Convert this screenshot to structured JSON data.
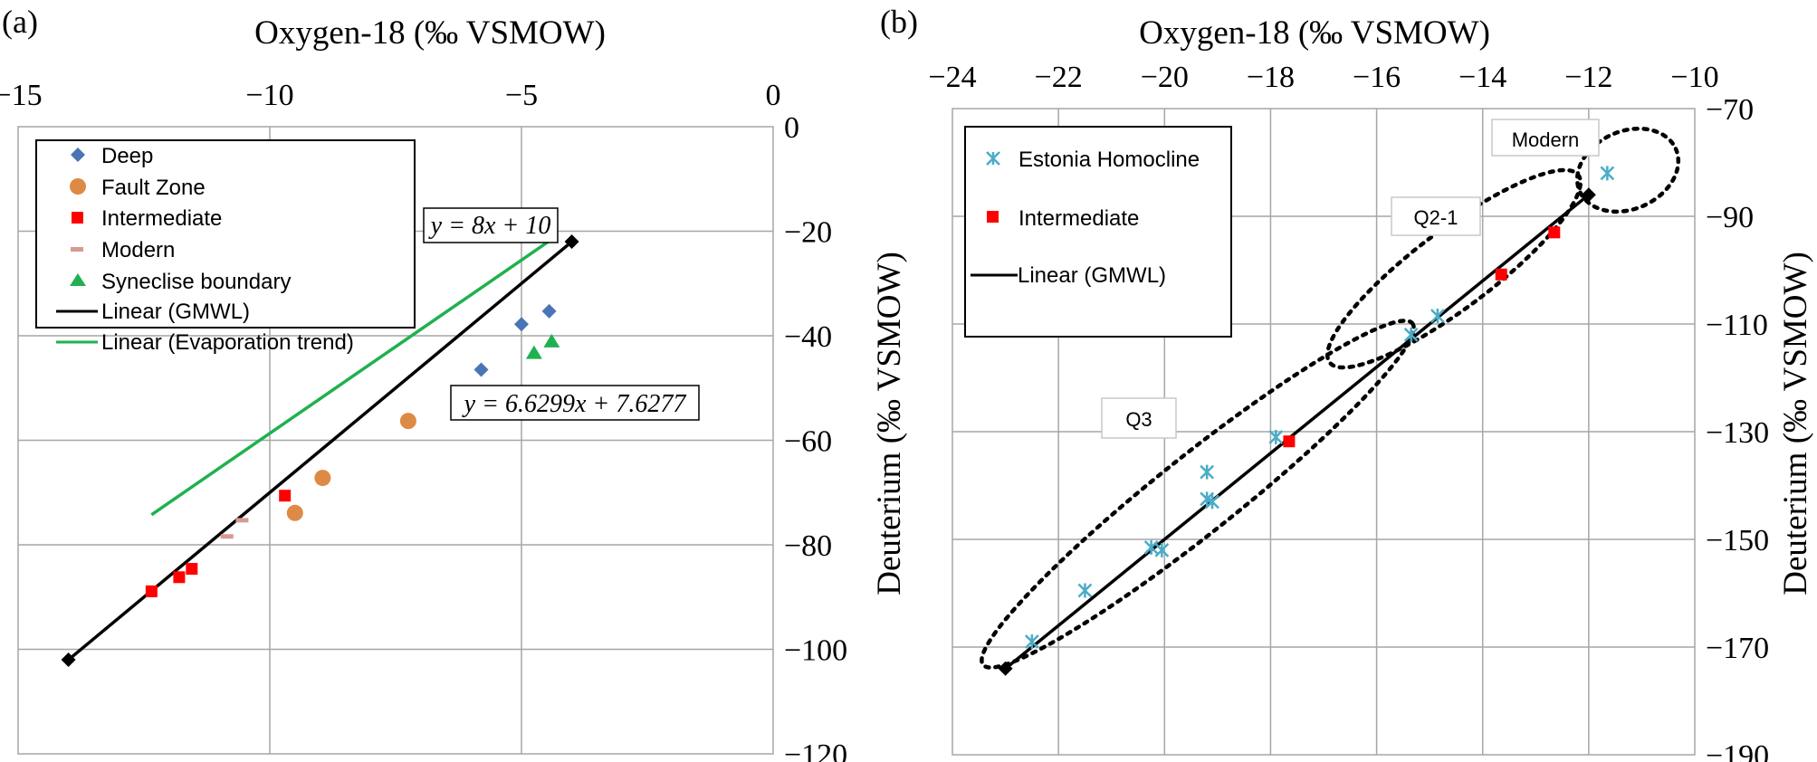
{
  "chart_data": [
    {
      "panel_label": "(a)",
      "type": "scatter",
      "xlabel": "Oxygen-18 (‰ VSMOW)",
      "ylabel": "Deuterium (‰ VSMOW)",
      "xlim": [
        -15,
        0
      ],
      "ylim": [
        -120,
        0
      ],
      "x_ticks": [
        -15,
        -10,
        -5,
        0
      ],
      "y_ticks": [
        0,
        -20,
        -40,
        -60,
        -80,
        -100,
        -120
      ],
      "x_axis_position": "top",
      "y_axis_position": "right",
      "grid": true,
      "legend_position": "top-left",
      "series": [
        {
          "name": "Deep",
          "marker": "diamond",
          "color": "#4a74b5",
          "points": [
            [
              -5.0,
              -37.8
            ],
            [
              -4.45,
              -35.3
            ],
            [
              -5.8,
              -46.5
            ]
          ]
        },
        {
          "name": "Fault Zone",
          "marker": "circle",
          "color": "#dd8a46",
          "points": [
            [
              -7.25,
              -56.3
            ],
            [
              -8.95,
              -67.2
            ],
            [
              -9.5,
              -73.9
            ]
          ]
        },
        {
          "name": "Intermediate",
          "marker": "square",
          "color": "#ff0000",
          "points": [
            [
              -9.7,
              -70.6
            ],
            [
              -11.55,
              -84.6
            ],
            [
              -11.8,
              -86.2
            ],
            [
              -12.35,
              -88.9
            ]
          ]
        },
        {
          "name": "Modern",
          "marker": "dash",
          "color": "#d69a93",
          "points": [
            [
              -10.55,
              -75.3
            ],
            [
              -10.85,
              -78.4
            ]
          ]
        },
        {
          "name": "Syneclise boundary",
          "marker": "triangle",
          "color": "#1fb14f",
          "points": [
            [
              -4.4,
              -41.2
            ],
            [
              -4.75,
              -43.4
            ]
          ]
        },
        {
          "name": "Linear (GMWL)",
          "type": "line",
          "color": "#000000",
          "points": [
            [
              -14,
              -102
            ],
            [
              -4,
              -22
            ]
          ],
          "end_marker": "diamond"
        },
        {
          "name": "Linear (Evaporation trend)",
          "type": "line",
          "color": "#1fb14f",
          "points": [
            [
              -12.35,
              -74.25
            ],
            [
              -4.4,
              -21.54
            ]
          ]
        }
      ],
      "annotations": [
        {
          "text": "y = 8x + 10",
          "x": -7.8,
          "y": -20
        },
        {
          "text": "y = 6.6299x + 7.6277",
          "x": -6.6,
          "y": -53
        }
      ]
    },
    {
      "panel_label": "(b)",
      "type": "scatter",
      "xlabel": "Oxygen-18 (‰ VSMOW)",
      "ylabel": "Deuterium (‰ VSMOW)",
      "xlim": [
        -24,
        -10
      ],
      "ylim": [
        -190,
        -70
      ],
      "x_ticks": [
        -24,
        -22,
        -20,
        -18,
        -16,
        -14,
        -12,
        -10
      ],
      "y_ticks": [
        -70,
        -90,
        -110,
        -130,
        -150,
        -170,
        -190
      ],
      "x_axis_position": "top",
      "y_axis_position": "right",
      "grid": true,
      "legend_position": "top-left",
      "series": [
        {
          "name": "Estonia Homocline",
          "marker": "asterisk",
          "color": "#4aacc6",
          "points": [
            [
              -22.5,
              -169
            ],
            [
              -21.5,
              -159.5
            ],
            [
              -20.25,
              -151.5
            ],
            [
              -20.05,
              -152
            ],
            [
              -19.2,
              -142.5
            ],
            [
              -19.1,
              -143
            ],
            [
              -19.2,
              -137.5
            ],
            [
              -17.9,
              -131
            ],
            [
              -15.35,
              -112
            ],
            [
              -14.85,
              -108.5
            ],
            [
              -11.65,
              -82
            ]
          ]
        },
        {
          "name": "Intermediate",
          "marker": "square",
          "color": "#ff0000",
          "points": [
            [
              -17.65,
              -131.8
            ],
            [
              -13.65,
              -100.8
            ],
            [
              -12.65,
              -93
            ]
          ]
        },
        {
          "name": "Linear (GMWL)",
          "type": "line",
          "color": "#000000",
          "points": [
            [
              -23,
              -174
            ],
            [
              -12,
              -86
            ]
          ],
          "end_marker": "diamond"
        }
      ],
      "annotations": [
        {
          "text": "Modern",
          "label": "Modern"
        },
        {
          "text": "Q2-1",
          "label": "Q2-1"
        },
        {
          "text": "Q3",
          "label": "Q3"
        }
      ]
    }
  ]
}
